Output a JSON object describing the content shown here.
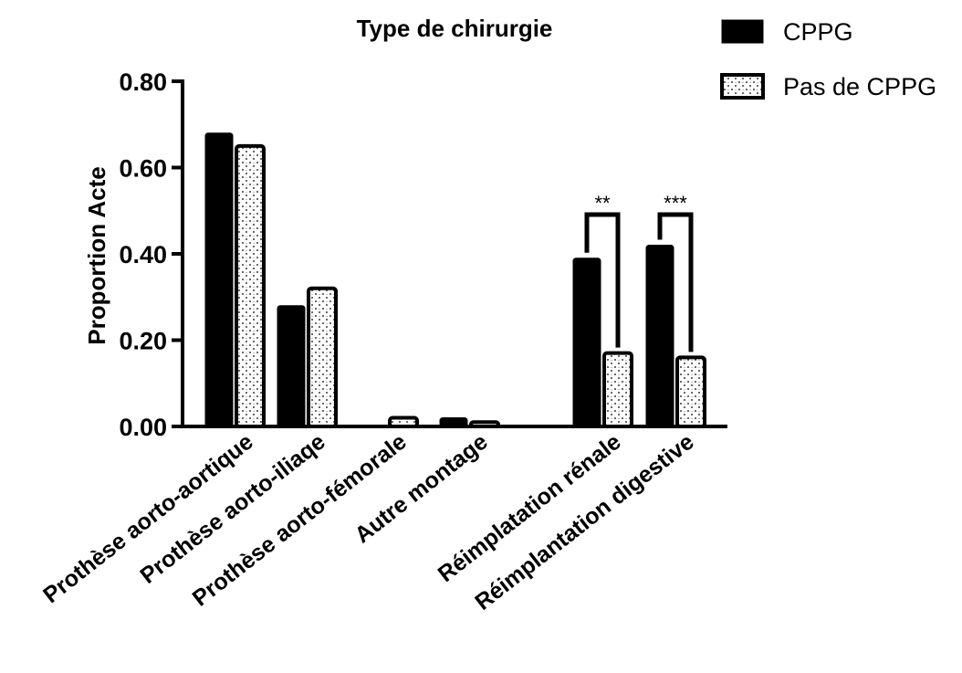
{
  "chart_data": {
    "type": "bar",
    "title": "Type de chirurgie",
    "ylabel": "Proportion  Acte",
    "xlabel": "",
    "ylim": [
      0,
      0.8
    ],
    "yticks": [
      "0.00",
      "0.20",
      "0.40",
      "0.60",
      "0.80"
    ],
    "categories": [
      "Prothèse aorto-aortique",
      "Prothèse aorto-iliaqe",
      "Prothèse aorto-fémorale",
      "Autre montage",
      "Réimplatation rénale",
      "Réimplantation digestive"
    ],
    "series": [
      {
        "name": "CPPG",
        "values": [
          0.68,
          0.28,
          0.0,
          0.02,
          0.39,
          0.42
        ],
        "fill": "#000000",
        "pattern": "solid"
      },
      {
        "name": "Pas de CPPG",
        "values": [
          0.65,
          0.32,
          0.02,
          0.01,
          0.17,
          0.16
        ],
        "fill": "#ffffff",
        "pattern": "dotted"
      }
    ],
    "significance": [
      {
        "category_index": 4,
        "label": "**"
      },
      {
        "category_index": 5,
        "label": "***"
      }
    ],
    "legend_position": "top-right",
    "grid": false
  }
}
